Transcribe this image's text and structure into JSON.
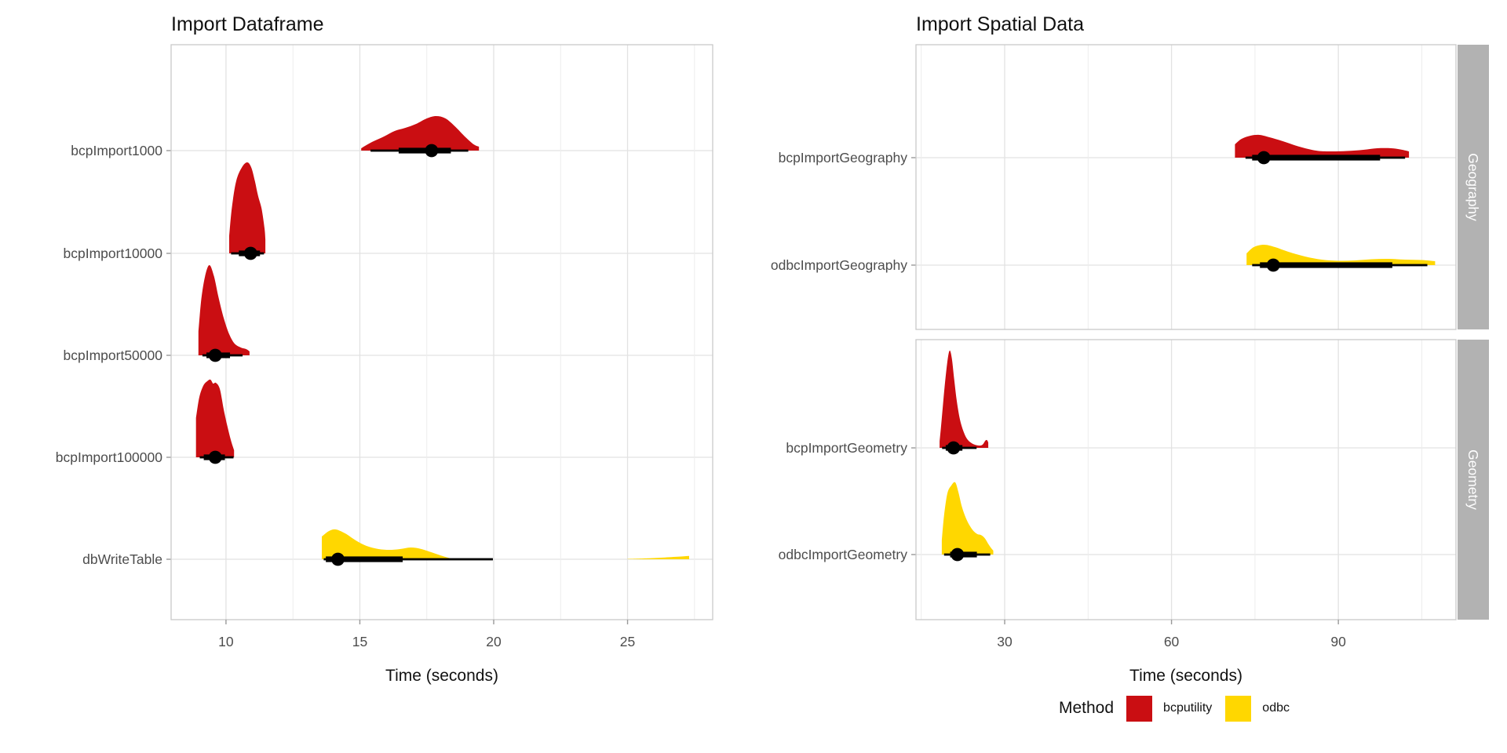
{
  "colors": {
    "bcputility": "#CA0E12",
    "odbc": "#FFD700",
    "interval": "#000000",
    "axis_text": "#4D4D4D",
    "grid_major": "#E2E2E2",
    "grid_minor": "#EDEDED",
    "panel_border": "#C9C9C9",
    "tick_mark": "#999999",
    "strip_fill": "#B2B2B2",
    "strip_text": "#FFFFFF",
    "background": "#FFFFFF"
  },
  "legend": {
    "title": "Method",
    "items": [
      {
        "label": "bcputility",
        "color": "#CA0E12"
      },
      {
        "label": "odbc",
        "color": "#FFD700"
      }
    ]
  },
  "chart_data": [
    {
      "type": "halfeye-interval",
      "title": "Import Dataframe",
      "xlabel": "Time (seconds)",
      "x_domain": [
        7.95,
        28.18
      ],
      "x_ticks_major": [
        10,
        15,
        20,
        25
      ],
      "x_ticks_minor": [
        12.5,
        17.5,
        22.5,
        27.5
      ],
      "grid": true,
      "facets": [
        {
          "label": null,
          "rows": [
            {
              "label": "bcpImport1000",
              "method": "bcputility",
              "median": 17.68,
              "interval_thick": [
                16.45,
                18.4
              ],
              "interval_thin": [
                15.4,
                19.05
              ],
              "density": [
                [
                  15.05,
                  3
                ],
                [
                  15.4,
                  10
                ],
                [
                  15.9,
                  18
                ],
                [
                  16.3,
                  25
                ],
                [
                  16.7,
                  29
                ],
                [
                  17.1,
                  34
                ],
                [
                  17.5,
                  41
                ],
                [
                  17.85,
                  44
                ],
                [
                  18.2,
                  41
                ],
                [
                  18.55,
                  31
                ],
                [
                  18.95,
                  17
                ],
                [
                  19.25,
                  8
                ],
                [
                  19.45,
                  5
                ]
              ]
            },
            {
              "label": "bcpImport10000",
              "method": "bcputility",
              "median": 10.92,
              "interval_thick": [
                10.48,
                11.27
              ],
              "interval_thin": [
                10.19,
                11.42
              ],
              "density": [
                [
                  10.12,
                  22
                ],
                [
                  10.22,
                  58
                ],
                [
                  10.38,
                  92
                ],
                [
                  10.6,
                  110
                ],
                [
                  10.8,
                  116
                ],
                [
                  10.95,
                  109
                ],
                [
                  11.08,
                  92
                ],
                [
                  11.2,
                  73
                ],
                [
                  11.33,
                  57
                ],
                [
                  11.44,
                  32
                ],
                [
                  11.47,
                  18
                ]
              ]
            },
            {
              "label": "bcpImport50000",
              "method": "bcputility",
              "median": 9.6,
              "interval_thick": [
                9.27,
                10.15
              ],
              "interval_thin": [
                9.12,
                10.62
              ],
              "density": [
                [
                  8.97,
                  30
                ],
                [
                  9.08,
                  72
                ],
                [
                  9.22,
                  101
                ],
                [
                  9.38,
                  115
                ],
                [
                  9.55,
                  101
                ],
                [
                  9.72,
                  74
                ],
                [
                  9.92,
                  47
                ],
                [
                  10.12,
                  27
                ],
                [
                  10.32,
                  15
                ],
                [
                  10.55,
                  10
                ],
                [
                  10.75,
                  8
                ],
                [
                  10.88,
                  5
                ]
              ]
            },
            {
              "label": "bcpImport100000",
              "method": "bcputility",
              "median": 9.6,
              "interval_thick": [
                9.17,
                9.96
              ],
              "interval_thin": [
                9.02,
                10.28
              ],
              "density": [
                [
                  8.88,
                  50
                ],
                [
                  9.0,
                  76
                ],
                [
                  9.15,
                  91
                ],
                [
                  9.3,
                  97
                ],
                [
                  9.42,
                  99
                ],
                [
                  9.52,
                  94
                ],
                [
                  9.62,
                  95
                ],
                [
                  9.77,
                  87
                ],
                [
                  9.92,
                  60
                ],
                [
                  10.05,
                  40
                ],
                [
                  10.18,
                  22
                ],
                [
                  10.3,
                  9
                ]
              ]
            },
            {
              "label": "dbWriteTable",
              "method": "odbc",
              "median": 14.18,
              "interval_thick": [
                13.73,
                16.6
              ],
              "interval_thin": [
                13.65,
                19.97
              ],
              "density": [
                [
                  13.58,
                  29
                ],
                [
                  13.85,
                  36
                ],
                [
                  14.1,
                  38
                ],
                [
                  14.45,
                  33
                ],
                [
                  14.85,
                  24
                ],
                [
                  15.25,
                  17
                ],
                [
                  15.7,
                  13
                ],
                [
                  16.1,
                  12
                ],
                [
                  16.5,
                  13
                ],
                [
                  16.9,
                  15
                ],
                [
                  17.3,
                  13
                ],
                [
                  17.75,
                  8
                ],
                [
                  18.1,
                  4
                ],
                [
                  18.4,
                  1
                ]
              ],
              "outlier_density": [
                [
                  25.0,
                  0.4
                ],
                [
                  25.8,
                  1.3
                ],
                [
                  26.4,
                  2.3
                ],
                [
                  27.0,
                  3.5
                ],
                [
                  27.3,
                  4.2
                ]
              ]
            }
          ]
        }
      ]
    },
    {
      "type": "halfeye-interval",
      "title": "Import Spatial Data",
      "xlabel": "Time (seconds)",
      "x_domain": [
        14.05,
        111.15
      ],
      "x_ticks_major": [
        30,
        60,
        90
      ],
      "x_ticks_minor": [
        15,
        45,
        75,
        105
      ],
      "grid": true,
      "facets": [
        {
          "label": "Geography",
          "rows": [
            {
              "label": "bcpImportGeography",
              "method": "bcputility",
              "median": 76.6,
              "interval_thick": [
                74.5,
                97.5
              ],
              "interval_thin": [
                73.3,
                102.0
              ],
              "density": [
                [
                  71.4,
                  17
                ],
                [
                  72.6,
                  24
                ],
                [
                  74.2,
                  28
                ],
                [
                  75.8,
                  29
                ],
                [
                  77.6,
                  26
                ],
                [
                  80.0,
                  21
                ],
                [
                  83.0,
                  14
                ],
                [
                  86.0,
                  9
                ],
                [
                  88.5,
                  8
                ],
                [
                  91.5,
                  8.5
                ],
                [
                  94.5,
                  10
                ],
                [
                  97.0,
                  12
                ],
                [
                  99.5,
                  12
                ],
                [
                  101.5,
                  10
                ],
                [
                  102.7,
                  8
                ]
              ]
            },
            {
              "label": "odbcImportGeography",
              "method": "odbc",
              "median": 78.3,
              "interval_thick": [
                75.9,
                99.7
              ],
              "interval_thin": [
                74.5,
                106.0
              ],
              "density": [
                [
                  73.5,
                  15
                ],
                [
                  74.8,
                  23
                ],
                [
                  76.6,
                  26
                ],
                [
                  78.6,
                  23
                ],
                [
                  81.0,
                  17
                ],
                [
                  84.0,
                  11
                ],
                [
                  87.0,
                  7
                ],
                [
                  90.0,
                  5.5
                ],
                [
                  93.0,
                  6
                ],
                [
                  96.0,
                  7.5
                ],
                [
                  99.0,
                  8
                ],
                [
                  102.0,
                  7
                ],
                [
                  105.0,
                  6.5
                ],
                [
                  107.4,
                  5
                ]
              ]
            }
          ]
        },
        {
          "label": "Geometry",
          "rows": [
            {
              "label": "bcpImportGeometry",
              "method": "bcputility",
              "median": 20.8,
              "interval_thick": [
                19.4,
                22.4
              ],
              "interval_thin": [
                18.75,
                24.95
              ],
              "density": [
                [
                  18.3,
                  8
                ],
                [
                  18.7,
                  38
                ],
                [
                  19.2,
                  78
                ],
                [
                  19.7,
                  110
                ],
                [
                  20.1,
                  124
                ],
                [
                  20.5,
                  114
                ],
                [
                  20.9,
                  89
                ],
                [
                  21.4,
                  59
                ],
                [
                  22.0,
                  35
                ],
                [
                  22.7,
                  19
                ],
                [
                  23.4,
                  10
                ],
                [
                  24.3,
                  5
                ],
                [
                  25.3,
                  3
                ],
                [
                  26.0,
                  4
                ],
                [
                  26.5,
                  9
                ],
                [
                  26.8,
                  10
                ],
                [
                  27.05,
                  7
                ]
              ]
            },
            {
              "label": "odbcImportGeometry",
              "method": "odbc",
              "median": 21.5,
              "interval_thick": [
                20.2,
                25.0
              ],
              "interval_thin": [
                19.1,
                27.4
              ],
              "density": [
                [
                  18.7,
                  18
                ],
                [
                  19.1,
                  50
                ],
                [
                  19.7,
                  78
                ],
                [
                  20.4,
                  88
                ],
                [
                  21.1,
                  92
                ],
                [
                  21.7,
                  79
                ],
                [
                  22.3,
                  61
                ],
                [
                  23.0,
                  47
                ],
                [
                  23.7,
                  37
                ],
                [
                  24.4,
                  30
                ],
                [
                  25.1,
                  26
                ],
                [
                  25.7,
                  25
                ],
                [
                  26.4,
                  21
                ],
                [
                  27.1,
                  13
                ],
                [
                  27.6,
                  8
                ],
                [
                  27.95,
                  5
                ]
              ]
            }
          ]
        }
      ]
    }
  ]
}
